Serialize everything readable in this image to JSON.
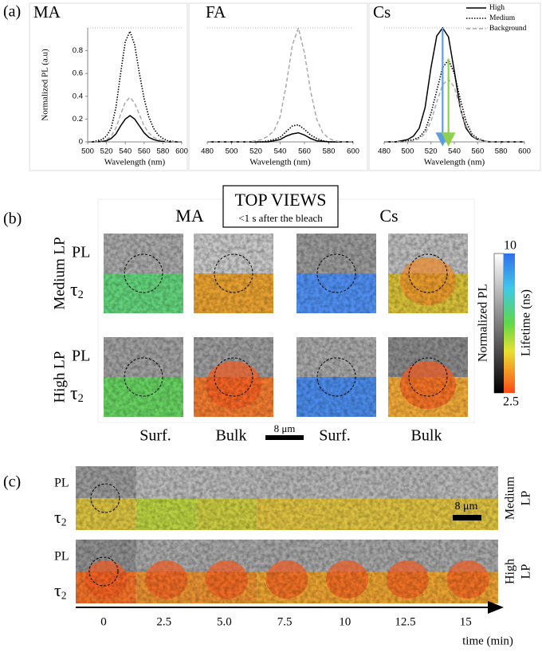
{
  "panel_a": {
    "label": "(a)"
  },
  "chart_data": [
    {
      "type": "line",
      "title": "MA",
      "ylabel": "Normalized PL (a.u)",
      "xlabel": "Wavelength (nm)",
      "x": [
        500,
        505,
        510,
        515,
        520,
        525,
        530,
        535,
        540,
        545,
        550,
        555,
        560,
        565,
        570,
        575,
        580,
        585,
        590,
        595,
        600
      ],
      "xlim": [
        500,
        600
      ],
      "xticks": [
        500,
        520,
        540,
        560,
        580,
        600
      ],
      "ylim": [
        0,
        1
      ],
      "yticks": [
        0,
        0.2,
        0.4,
        0.6,
        0.8
      ],
      "series": [
        {
          "color": "#000000",
          "dash": "solid",
          "values": [
            0,
            0,
            0,
            0.005,
            0.01,
            0.03,
            0.07,
            0.14,
            0.2,
            0.23,
            0.2,
            0.14,
            0.08,
            0.04,
            0.02,
            0.01,
            0.005,
            0,
            0,
            0,
            0
          ]
        },
        {
          "color": "#000000",
          "dash": "dotted",
          "values": [
            0,
            0,
            0.01,
            0.02,
            0.05,
            0.12,
            0.3,
            0.6,
            0.88,
            0.97,
            0.85,
            0.6,
            0.38,
            0.22,
            0.12,
            0.06,
            0.03,
            0.01,
            0.005,
            0,
            0
          ]
        },
        {
          "color": "#aaaaaa",
          "dash": "dashed",
          "values": [
            0,
            0,
            0,
            0.01,
            0.02,
            0.05,
            0.12,
            0.24,
            0.35,
            0.39,
            0.34,
            0.24,
            0.14,
            0.08,
            0.04,
            0.02,
            0.01,
            0,
            0,
            0,
            0
          ]
        }
      ]
    },
    {
      "type": "line",
      "title": "FA",
      "xlabel": "Wavelength (nm)",
      "x": [
        480,
        485,
        490,
        495,
        500,
        505,
        510,
        515,
        520,
        525,
        530,
        535,
        540,
        545,
        550,
        555,
        560,
        565,
        570,
        575,
        580,
        585,
        590,
        595,
        600
      ],
      "xlim": [
        480,
        600
      ],
      "xticks": [
        480,
        500,
        520,
        540,
        560,
        580,
        600
      ],
      "ylim": [
        0,
        1
      ],
      "series": [
        {
          "color": "#000000",
          "dash": "solid",
          "values": [
            0,
            0,
            0,
            0,
            0,
            0,
            0,
            0,
            0,
            0,
            0,
            0.01,
            0.02,
            0.05,
            0.07,
            0.08,
            0.06,
            0.03,
            0.01,
            0.005,
            0,
            0,
            0,
            0,
            0
          ]
        },
        {
          "color": "#000000",
          "dash": "dotted",
          "values": [
            0,
            0,
            0,
            0,
            0,
            0,
            0,
            0,
            0,
            0,
            0.01,
            0.02,
            0.04,
            0.09,
            0.14,
            0.15,
            0.11,
            0.06,
            0.03,
            0.01,
            0,
            0,
            0,
            0,
            0
          ]
        },
        {
          "color": "#aaaaaa",
          "dash": "dashed",
          "values": [
            0,
            0,
            0,
            0,
            0,
            0,
            0,
            0,
            0.01,
            0.02,
            0.05,
            0.1,
            0.22,
            0.5,
            0.85,
            1.0,
            0.78,
            0.45,
            0.2,
            0.08,
            0.03,
            0.01,
            0,
            0,
            0
          ]
        }
      ]
    },
    {
      "type": "line",
      "title": "Cs",
      "xlabel": "Wavelength (nm)",
      "x": [
        480,
        485,
        490,
        495,
        500,
        505,
        510,
        515,
        520,
        525,
        530,
        535,
        540,
        545,
        550,
        555,
        560,
        565,
        570,
        575,
        580,
        585,
        590,
        595,
        600
      ],
      "xlim": [
        480,
        600
      ],
      "xticks": [
        480,
        500,
        520,
        540,
        560,
        580,
        600
      ],
      "ylim": [
        0,
        1
      ],
      "legend": "upper right",
      "series": [
        {
          "name": "High",
          "color": "#000000",
          "dash": "solid",
          "values": [
            0,
            0,
            0,
            0.01,
            0.02,
            0.05,
            0.12,
            0.3,
            0.65,
            0.93,
            1.0,
            0.92,
            0.62,
            0.3,
            0.12,
            0.05,
            0.02,
            0.01,
            0,
            0,
            0,
            0,
            0,
            0,
            0
          ]
        },
        {
          "name": "Medium",
          "color": "#000000",
          "dash": "dotted",
          "values": [
            0,
            0,
            0,
            0,
            0.01,
            0.02,
            0.04,
            0.1,
            0.25,
            0.45,
            0.65,
            0.72,
            0.6,
            0.38,
            0.18,
            0.07,
            0.03,
            0.01,
            0,
            0,
            0,
            0,
            0,
            0,
            0
          ]
        },
        {
          "name": "Background",
          "color": "#aaaaaa",
          "dash": "dashed",
          "values": [
            0,
            0,
            0,
            0,
            0,
            0.01,
            0.03,
            0.07,
            0.18,
            0.35,
            0.5,
            0.55,
            0.48,
            0.3,
            0.14,
            0.06,
            0.02,
            0.01,
            0,
            0,
            0,
            0,
            0,
            0,
            0
          ]
        }
      ],
      "arrows": [
        {
          "x": 530,
          "values": [
            1.0,
            0
          ],
          "color": "#5b9fe0"
        },
        {
          "x": 535,
          "values": [
            0.73,
            0
          ],
          "color": "#8fd14f"
        }
      ]
    }
  ],
  "panel_b": {
    "label": "(b)",
    "box_title": "TOP VIEWS",
    "box_subtitle": "<1 s after the bleach",
    "columns": [
      "MA",
      "Cs"
    ],
    "rows": [
      "Medium LP",
      "High LP"
    ],
    "pl_label": "PL",
    "bottom_labels": [
      "Surf.",
      "Bulk",
      "Surf.",
      "Bulk"
    ],
    "scale_bar": "8 μm",
    "colorbar_left_label": "Normalized PL",
    "colorbar_right_label": "Lifetime (ns)",
    "colorbar_max": "10",
    "colorbar_min": "2.5"
  },
  "tau_label": {
    "symbol": "τ",
    "subscript": "2"
  },
  "panel_c": {
    "label": "(c)",
    "pl_label": "PL",
    "rows": [
      [
        "Medium",
        "LP"
      ],
      [
        "High",
        "LP"
      ]
    ],
    "scale_bar": "8 μm",
    "time_labels": [
      "0",
      "2.5",
      "5.0",
      "7.5",
      "10",
      "12.5",
      "15"
    ],
    "time_axis_label": "time (min)"
  }
}
